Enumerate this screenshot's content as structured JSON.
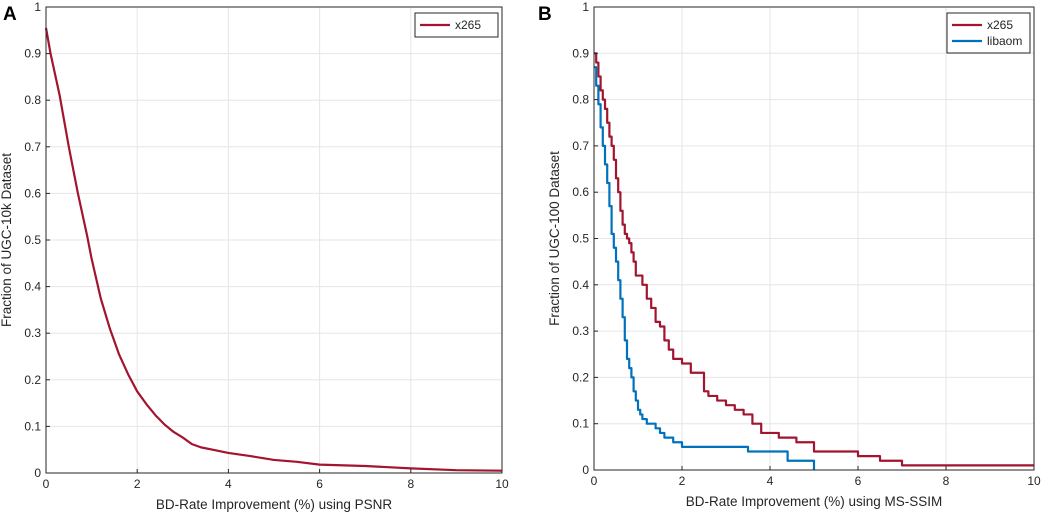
{
  "chart_data": [
    {
      "type": "line",
      "panel_label": "A",
      "title": "",
      "xlabel": "BD-Rate Improvement (%) using PSNR",
      "ylabel": "Fraction of UGC-10k Dataset",
      "xlim": [
        0,
        10
      ],
      "ylim": [
        0,
        1
      ],
      "xticks": [
        "0",
        "2",
        "4",
        "6",
        "8",
        "10"
      ],
      "yticks": [
        "0",
        "0.1",
        "0.2",
        "0.3",
        "0.4",
        "0.5",
        "0.6",
        "0.7",
        "0.8",
        "0.9",
        "1"
      ],
      "grid": true,
      "legend_position": "top-right",
      "series": [
        {
          "name": "x265",
          "color": "#a2142f",
          "step": false,
          "x": [
            0,
            0.1,
            0.3,
            0.5,
            0.7,
            0.9,
            1.0,
            1.2,
            1.4,
            1.6,
            1.8,
            2.0,
            2.2,
            2.4,
            2.6,
            2.8,
            3.0,
            3.2,
            3.4,
            3.6,
            4.0,
            4.5,
            5.0,
            5.5,
            6.0,
            7.0,
            8.0,
            9.0,
            10.0
          ],
          "y": [
            0.955,
            0.9,
            0.81,
            0.7,
            0.6,
            0.51,
            0.46,
            0.375,
            0.31,
            0.255,
            0.212,
            0.175,
            0.148,
            0.124,
            0.104,
            0.088,
            0.076,
            0.062,
            0.055,
            0.051,
            0.043,
            0.036,
            0.028,
            0.024,
            0.018,
            0.015,
            0.01,
            0.006,
            0.005
          ]
        }
      ]
    },
    {
      "type": "line",
      "panel_label": "B",
      "title": "",
      "xlabel": "BD-Rate Improvement (%) using MS-SSIM",
      "ylabel": "Fraction of UGC-100 Dataset",
      "xlim": [
        0,
        10
      ],
      "ylim": [
        0,
        1
      ],
      "xticks": [
        "0",
        "2",
        "4",
        "6",
        "8",
        "10"
      ],
      "yticks": [
        "0",
        "0.1",
        "0.2",
        "0.3",
        "0.4",
        "0.5",
        "0.6",
        "0.7",
        "0.8",
        "0.9",
        "1"
      ],
      "grid": true,
      "legend_position": "top-right",
      "series": [
        {
          "name": "x265",
          "color": "#a2142f",
          "step": true,
          "x": [
            0,
            0.05,
            0.1,
            0.15,
            0.2,
            0.25,
            0.3,
            0.35,
            0.4,
            0.45,
            0.5,
            0.55,
            0.6,
            0.65,
            0.7,
            0.75,
            0.8,
            0.85,
            0.9,
            0.95,
            1.0,
            1.1,
            1.2,
            1.3,
            1.4,
            1.5,
            1.6,
            1.7,
            1.8,
            2.0,
            2.2,
            2.5,
            2.6,
            2.8,
            3.0,
            3.2,
            3.4,
            3.6,
            3.8,
            4.2,
            4.6,
            5.0,
            5.5,
            6.0,
            6.5,
            7.0,
            10.0
          ],
          "y": [
            0.9,
            0.88,
            0.85,
            0.82,
            0.8,
            0.78,
            0.75,
            0.72,
            0.7,
            0.67,
            0.63,
            0.6,
            0.56,
            0.53,
            0.51,
            0.5,
            0.49,
            0.47,
            0.45,
            0.42,
            0.42,
            0.4,
            0.37,
            0.35,
            0.32,
            0.31,
            0.28,
            0.26,
            0.24,
            0.23,
            0.21,
            0.17,
            0.16,
            0.15,
            0.14,
            0.13,
            0.12,
            0.1,
            0.08,
            0.07,
            0.06,
            0.04,
            0.04,
            0.03,
            0.02,
            0.01,
            0.01
          ]
        },
        {
          "name": "libaom",
          "color": "#0072bd",
          "step": true,
          "x": [
            0,
            0.05,
            0.1,
            0.15,
            0.2,
            0.25,
            0.3,
            0.35,
            0.4,
            0.45,
            0.5,
            0.55,
            0.6,
            0.65,
            0.7,
            0.75,
            0.8,
            0.85,
            0.9,
            0.95,
            1.0,
            1.05,
            1.1,
            1.2,
            1.3,
            1.4,
            1.5,
            1.6,
            1.8,
            2.0,
            2.4,
            3.0,
            3.5,
            4.0,
            4.4,
            4.8,
            5.0
          ],
          "y": [
            0.87,
            0.83,
            0.79,
            0.74,
            0.7,
            0.66,
            0.62,
            0.57,
            0.51,
            0.48,
            0.45,
            0.41,
            0.37,
            0.33,
            0.28,
            0.24,
            0.22,
            0.2,
            0.17,
            0.15,
            0.13,
            0.12,
            0.11,
            0.1,
            0.1,
            0.09,
            0.08,
            0.07,
            0.06,
            0.05,
            0.05,
            0.05,
            0.04,
            0.04,
            0.02,
            0.02,
            0.0
          ]
        }
      ]
    }
  ]
}
